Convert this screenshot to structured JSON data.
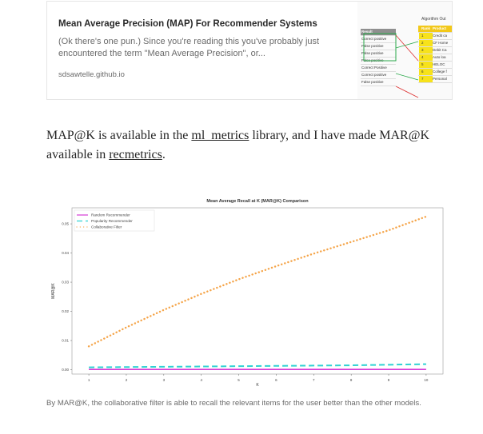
{
  "preview_card": {
    "title": "Mean Average Precision (MAP) For Recommender Systems",
    "description": "(Ok there's one pun.) Since you're reading this you've probably just encountered the term \"Mean Average Precision\", or...",
    "domain": "sdsawtelle.github.io",
    "thumbnail": {
      "caption": "Algorithm Out",
      "left_rows": [
        "Result",
        "Correct positive",
        "False positive",
        "False positive",
        "False positive",
        "Correct Positive",
        "Correct positive",
        "False positive"
      ],
      "right_header": [
        "Rank",
        "Product"
      ],
      "right_rows": [
        {
          "rank": "1",
          "product": "Credit ca"
        },
        {
          "rank": "2",
          "product": "CF Home"
        },
        {
          "rank": "3",
          "product": "Debit Ca"
        },
        {
          "rank": "4",
          "product": "Auto loa"
        },
        {
          "rank": "5",
          "product": "HELOC"
        },
        {
          "rank": "6",
          "product": "College f"
        },
        {
          "rank": "7",
          "product": "Personal"
        }
      ]
    }
  },
  "paragraph": {
    "part1": "MAP@K is available in the ",
    "link1": "ml_metrics",
    "part2": " library, and I have made MAR@K available in ",
    "link2": "recmetrics",
    "part3": "."
  },
  "chart_data": {
    "type": "line",
    "title": "Mean Average Recall at K (MAR@K) Comparison",
    "xlabel": "K",
    "ylabel": "MAR@K",
    "x": [
      1,
      2,
      3,
      4,
      5,
      6,
      7,
      8,
      9,
      10
    ],
    "xlim": [
      0.55,
      10.45
    ],
    "ylim": [
      -0.0015,
      0.0555
    ],
    "xticks": [
      "1",
      "2",
      "3",
      "4",
      "5",
      "6",
      "7",
      "8",
      "9",
      "10"
    ],
    "yticks": [
      {
        "v": 0.0,
        "label": "0.00"
      },
      {
        "v": 0.01,
        "label": "0.01"
      },
      {
        "v": 0.02,
        "label": "0.02"
      },
      {
        "v": 0.03,
        "label": "0.03"
      },
      {
        "v": 0.04,
        "label": "0.04"
      },
      {
        "v": 0.05,
        "label": "0.05"
      }
    ],
    "grid": false,
    "legend_position": "top-left",
    "series": [
      {
        "name": "Random Recommender",
        "style": "solid",
        "color": "#d63ad6",
        "values": [
          0.0001,
          0.0001,
          0.0001,
          0.0001,
          0.0001,
          0.0001,
          0.0001,
          0.0001,
          0.0001,
          0.0001
        ]
      },
      {
        "name": "Popularity Recommender",
        "style": "dashed",
        "color": "#2fd2d2",
        "values": [
          0.0008,
          0.0009,
          0.001,
          0.0011,
          0.0012,
          0.0013,
          0.0014,
          0.0015,
          0.0017,
          0.0019
        ]
      },
      {
        "name": "Collaborative Filter",
        "style": "dotted",
        "color": "#f5a54a",
        "values": [
          0.008,
          0.0145,
          0.0205,
          0.026,
          0.031,
          0.0355,
          0.0398,
          0.0438,
          0.0478,
          0.0525
        ]
      }
    ]
  },
  "caption": "By MAR@K, the collaborative filter is able to recall the relevant items for the user better than the other models."
}
